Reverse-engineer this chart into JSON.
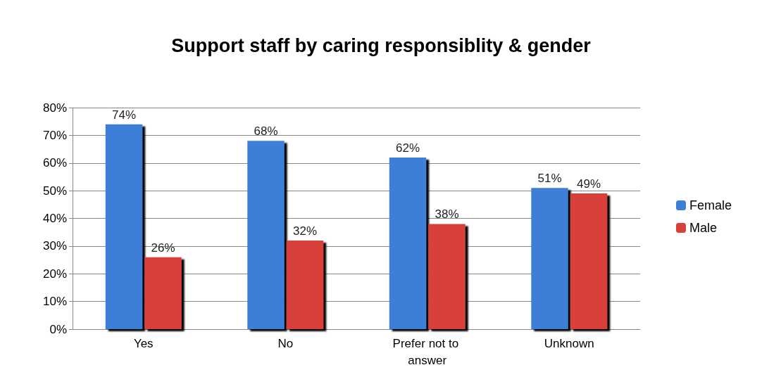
{
  "chart_data": {
    "type": "bar",
    "title": "Support staff by caring responsiblity & gender",
    "categories": [
      "Yes",
      "No",
      "Prefer not to answer",
      "Unknown"
    ],
    "series": [
      {
        "name": "Female",
        "color": "#3d7fd6",
        "values": [
          74,
          68,
          62,
          51
        ],
        "value_labels": [
          "74%",
          "68%",
          "62%",
          "51%"
        ]
      },
      {
        "name": "Male",
        "color": "#d9403a",
        "values": [
          26,
          32,
          38,
          49
        ],
        "value_labels": [
          "26%",
          "32%",
          "38%",
          "49%"
        ]
      }
    ],
    "ylim": [
      0,
      80
    ],
    "yticks": [
      {
        "value": 0,
        "label": "0%"
      },
      {
        "value": 10,
        "label": "10%"
      },
      {
        "value": 20,
        "label": "20%"
      },
      {
        "value": 30,
        "label": "30%"
      },
      {
        "value": 40,
        "label": "40%"
      },
      {
        "value": 50,
        "label": "50%"
      },
      {
        "value": 60,
        "label": "60%"
      },
      {
        "value": 70,
        "label": "70%"
      },
      {
        "value": 80,
        "label": "80%"
      }
    ],
    "grid": "y",
    "legend": "right"
  }
}
